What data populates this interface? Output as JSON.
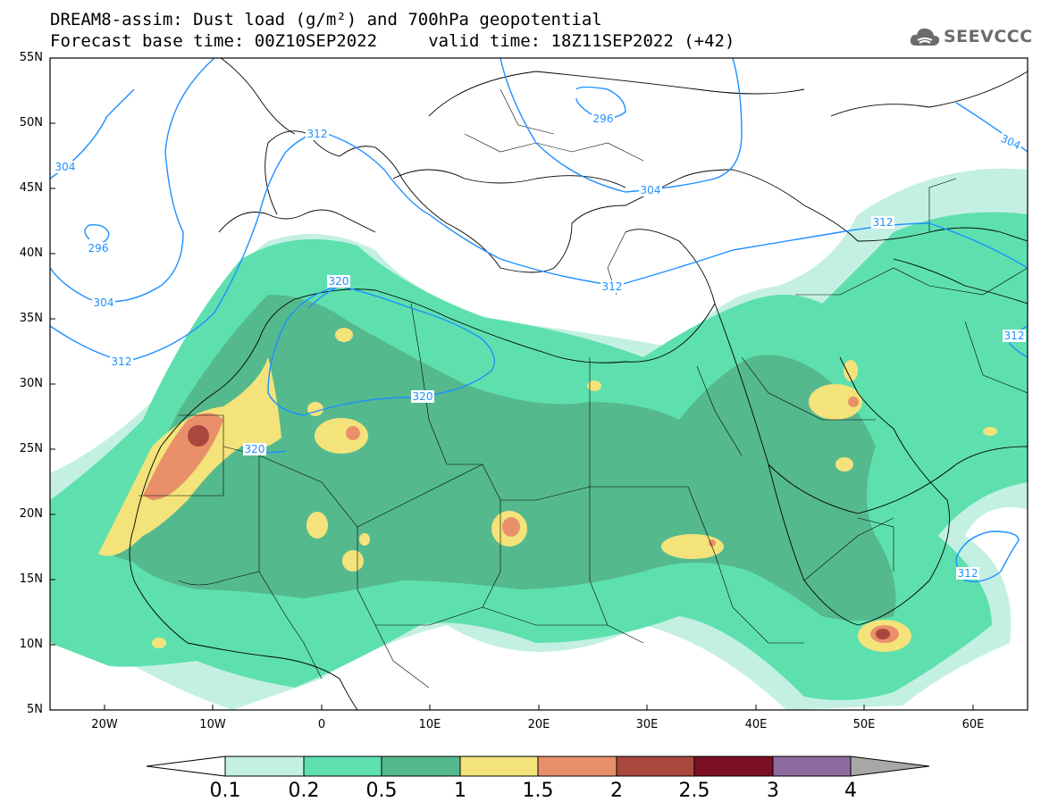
{
  "title": {
    "line1": "DREAM8-assim: Dust load (g/m²) and 700hPa geopotential",
    "line2": "Forecast base time: 00Z10SEP2022     valid time: 18Z11SEP2022 (+42)"
  },
  "logo": {
    "text": "SEEVCCC",
    "icon": "cloud-icon"
  },
  "axes": {
    "lat_labels": [
      "55N",
      "50N",
      "45N",
      "40N",
      "35N",
      "30N",
      "25N",
      "20N",
      "15N",
      "10N",
      "5N"
    ],
    "lon_labels": [
      "20W",
      "10W",
      "0",
      "10E",
      "20E",
      "30E",
      "40E",
      "50E",
      "60E"
    ],
    "lat_range": [
      5,
      55
    ],
    "lon_range": [
      -25,
      65
    ]
  },
  "colorbar": {
    "labels": [
      "0.1",
      "0.2",
      "0.5",
      "1",
      "1.5",
      "2",
      "2.5",
      "3",
      "4"
    ],
    "colors": [
      "#c4f0e4",
      "#5ee0ae",
      "#55b98e",
      "#f3e37a",
      "#e9906a",
      "#a9473e",
      "#7c0f24",
      "#8d6b9e"
    ],
    "under_color": "#ffffff",
    "over_color": "#a8a8a8"
  },
  "contour_labels": [
    "304",
    "296",
    "312",
    "304",
    "296",
    "304",
    "312",
    "320",
    "312",
    "320",
    "320",
    "312",
    "312",
    "304",
    "312",
    "312"
  ],
  "contour_color": "#1e90ff"
}
